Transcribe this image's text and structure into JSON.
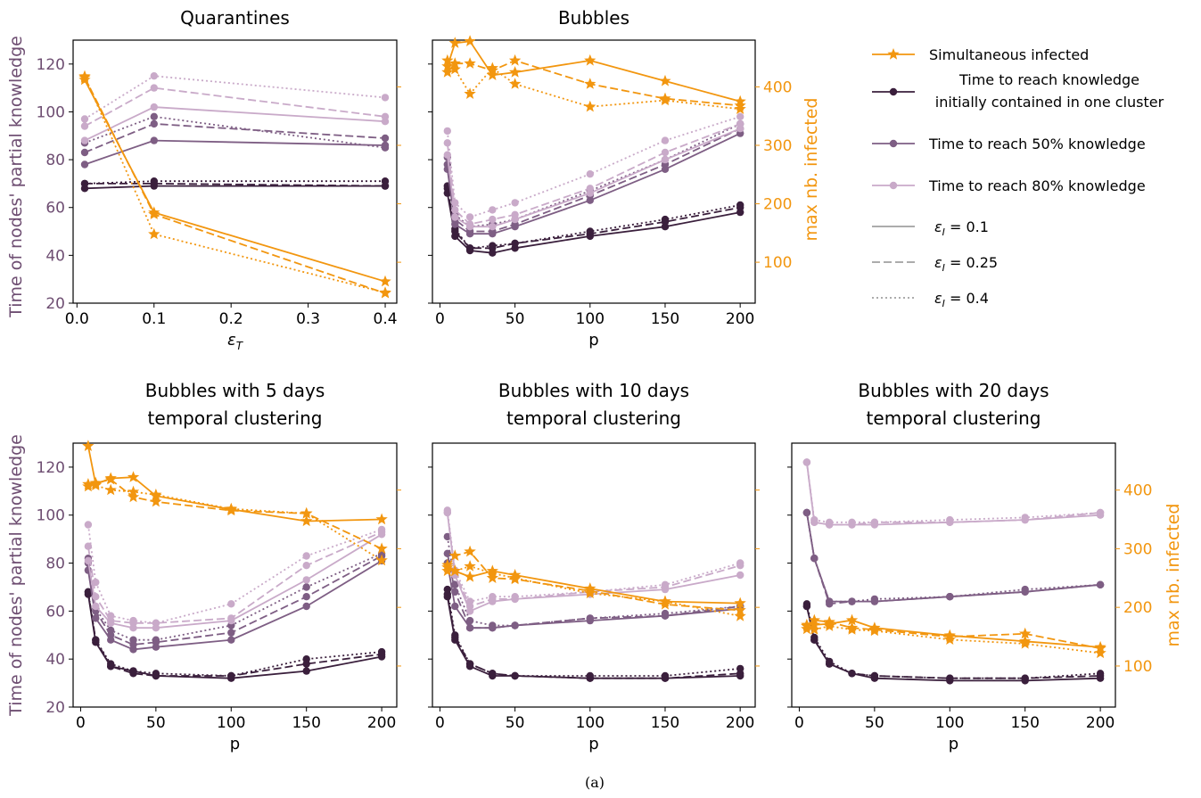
{
  "colors": {
    "infected": "#F2960F",
    "k1": "#3A1F3C",
    "k50": "#7E5E84",
    "k80": "#C9AAC9",
    "left_axis": "#6E4E72",
    "right_axis": "#F2960F"
  },
  "labels": {
    "left_ylabel": "Time of nodes' partial knowledge",
    "right_ylabel": "max nb. infected",
    "caption": "(a)"
  },
  "legend": {
    "items": [
      {
        "label": "Simultaneous infected",
        "marker": "star",
        "style": "solid",
        "series": "infected"
      },
      {
        "label": "Time to reach knowledge initially contained in one cluster",
        "lines": [
          "Time to reach knowledge",
          "initially contained in one cluster"
        ],
        "marker": "dot",
        "style": "solid",
        "series": "k1"
      },
      {
        "label": "Time to reach 50% knowledge",
        "marker": "dot",
        "style": "solid",
        "series": "k50"
      },
      {
        "label": "Time to reach 80% knowledge",
        "marker": "dot",
        "style": "solid",
        "series": "k80"
      },
      {
        "label_prefix": "ε",
        "label_sub": "I",
        "label_suffix": " = 0.1",
        "style": "solid"
      },
      {
        "label_prefix": "ε",
        "label_sub": "I",
        "label_suffix": " = 0.25",
        "style": "dashed"
      },
      {
        "label_prefix": "ε",
        "label_sub": "I",
        "label_suffix": " = 0.4",
        "style": "dotted"
      }
    ]
  },
  "chart_data": [
    {
      "type": "line",
      "title": [
        "Quarantines"
      ],
      "xlabel": "ε",
      "xlabel_sub": "T",
      "x": [
        0.01,
        0.1,
        0.4
      ],
      "xlim": [
        -0.005,
        0.415
      ],
      "xticks": [
        0.0,
        0.1,
        0.2,
        0.3,
        0.4
      ],
      "xtick_labels": [
        "0.0",
        "0.1",
        "0.2",
        "0.3",
        "0.4"
      ],
      "ylim": [
        20,
        130
      ],
      "yticks": [
        20,
        40,
        60,
        80,
        100,
        120
      ],
      "ylim_right": [
        30,
        480
      ],
      "yticks_right": [
        100,
        200,
        300,
        400
      ],
      "show_left_labels": true,
      "show_right_labels": false,
      "series": {
        "k1": {
          "solid": [
            68,
            69,
            69
          ],
          "dashed": [
            70,
            70,
            69
          ],
          "dotted": [
            70,
            71,
            71
          ]
        },
        "k50": {
          "solid": [
            78,
            88,
            86
          ],
          "dashed": [
            83,
            95,
            89
          ],
          "dotted": [
            87,
            98,
            85
          ]
        },
        "k80": {
          "solid": [
            88,
            102,
            96
          ],
          "dashed": [
            94,
            110,
            98
          ],
          "dotted": [
            97,
            115,
            106
          ]
        },
        "infected": {
          "solid": [
            412,
            185,
            67
          ],
          "dashed": [
            416,
            182,
            47
          ],
          "dotted": [
            418,
            148,
            48
          ]
        }
      }
    },
    {
      "type": "line",
      "title": [
        "Bubbles"
      ],
      "xlabel": "p",
      "x": [
        5,
        10,
        20,
        35,
        50,
        100,
        150,
        200
      ],
      "xlim": [
        -5,
        210
      ],
      "xticks": [
        0,
        50,
        100,
        150,
        200
      ],
      "xtick_labels": [
        "0",
        "50",
        "100",
        "150",
        "200"
      ],
      "ylim": [
        20,
        130
      ],
      "yticks": [
        20,
        40,
        60,
        80,
        100,
        120
      ],
      "ylim_right": [
        30,
        480
      ],
      "yticks_right": [
        100,
        200,
        300,
        400
      ],
      "show_left_labels": false,
      "show_right_labels": true,
      "series": {
        "k1": {
          "solid": [
            66,
            48,
            42,
            41,
            43,
            48,
            52,
            58
          ],
          "dashed": [
            68,
            50,
            43,
            43,
            45,
            49,
            54,
            60
          ],
          "dotted": [
            69,
            51,
            43,
            44,
            45,
            50,
            55,
            61
          ]
        },
        "k50": {
          "solid": [
            76,
            53,
            49,
            49,
            52,
            63,
            76,
            91
          ],
          "dashed": [
            78,
            55,
            50,
            50,
            53,
            65,
            78,
            93
          ],
          "dotted": [
            81,
            57,
            52,
            53,
            55,
            67,
            80,
            95
          ]
        },
        "k80": {
          "solid": [
            82,
            56,
            52,
            52,
            55,
            66,
            80,
            93
          ],
          "dashed": [
            87,
            59,
            53,
            55,
            57,
            68,
            83,
            95
          ],
          "dotted": [
            92,
            62,
            56,
            59,
            62,
            74,
            88,
            98
          ]
        },
        "infected": {
          "solid": [
            435,
            475,
            478,
            420,
            425,
            445,
            410,
            375
          ],
          "dashed": [
            425,
            440,
            440,
            428,
            445,
            405,
            380,
            368
          ],
          "dotted": [
            445,
            430,
            388,
            432,
            405,
            366,
            377,
            362
          ]
        }
      }
    },
    {
      "type": "line",
      "title": [
        "Bubbles with 5 days",
        "temporal clustering"
      ],
      "xlabel": "p",
      "x": [
        5,
        10,
        20,
        35,
        50,
        100,
        150,
        200
      ],
      "xlim": [
        -5,
        210
      ],
      "xticks": [
        0,
        50,
        100,
        150,
        200
      ],
      "xtick_labels": [
        "0",
        "50",
        "100",
        "150",
        "200"
      ],
      "ylim": [
        20,
        130
      ],
      "yticks": [
        20,
        40,
        60,
        80,
        100,
        120
      ],
      "ylim_right": [
        30,
        480
      ],
      "yticks_right": [
        100,
        200,
        300,
        400
      ],
      "show_left_labels": true,
      "show_right_labels": false,
      "series": {
        "k1": {
          "solid": [
            67,
            47,
            37,
            35,
            33,
            32,
            35,
            41
          ],
          "dashed": [
            68,
            48,
            37,
            34,
            33,
            33,
            38,
            42
          ],
          "dotted": [
            68,
            48,
            38,
            35,
            34,
            33,
            40,
            43
          ]
        },
        "k50": {
          "solid": [
            77,
            57,
            48,
            44,
            45,
            48,
            62,
            81
          ],
          "dashed": [
            80,
            60,
            50,
            46,
            47,
            51,
            66,
            83
          ],
          "dotted": [
            82,
            61,
            52,
            48,
            48,
            54,
            70,
            84
          ]
        },
        "k80": {
          "solid": [
            81,
            62,
            55,
            53,
            53,
            56,
            73,
            92
          ],
          "dashed": [
            87,
            66,
            56,
            55,
            55,
            57,
            79,
            93
          ],
          "dotted": [
            96,
            72,
            58,
            56,
            55,
            63,
            83,
            94
          ]
        },
        "infected": {
          "solid": [
            475,
            410,
            420,
            422,
            390,
            367,
            347,
            350
          ],
          "dashed": [
            406,
            412,
            418,
            388,
            380,
            365,
            360,
            300
          ],
          "dotted": [
            410,
            408,
            400,
            397,
            392,
            368,
            360,
            280
          ]
        }
      }
    },
    {
      "type": "line",
      "title": [
        "Bubbles with 10 days",
        "temporal clustering"
      ],
      "xlabel": "p",
      "x": [
        5,
        10,
        20,
        35,
        50,
        100,
        150,
        200
      ],
      "xlim": [
        -5,
        210
      ],
      "xticks": [
        0,
        50,
        100,
        150,
        200
      ],
      "xtick_labels": [
        "0",
        "50",
        "100",
        "150",
        "200"
      ],
      "ylim": [
        20,
        130
      ],
      "yticks": [
        20,
        40,
        60,
        80,
        100,
        120
      ],
      "ylim_right": [
        30,
        480
      ],
      "yticks_right": [
        100,
        200,
        300,
        400
      ],
      "show_left_labels": false,
      "show_right_labels": false,
      "series": {
        "k1": {
          "solid": [
            66,
            48,
            37,
            33,
            33,
            32,
            32,
            33
          ],
          "dashed": [
            67,
            49,
            38,
            34,
            33,
            32,
            32,
            34
          ],
          "dotted": [
            69,
            50,
            38,
            34,
            33,
            33,
            33,
            36
          ]
        },
        "k50": {
          "solid": [
            80,
            62,
            53,
            53,
            54,
            56,
            58,
            61
          ],
          "dashed": [
            84,
            68,
            53,
            53,
            54,
            57,
            58,
            62
          ],
          "dotted": [
            91,
            71,
            56,
            54,
            54,
            57,
            59,
            62
          ]
        },
        "k80": {
          "solid": [
            101,
            75,
            60,
            64,
            65,
            67,
            69,
            75
          ],
          "dashed": [
            101,
            76,
            62,
            65,
            65,
            68,
            70,
            79
          ],
          "dotted": [
            102,
            77,
            64,
            66,
            66,
            68,
            71,
            80
          ]
        },
        "infected": {
          "solid": [
            272,
            262,
            252,
            262,
            255,
            232,
            210,
            207
          ],
          "dashed": [
            268,
            288,
            295,
            250,
            248,
            228,
            205,
            195
          ],
          "dotted": [
            262,
            262,
            270,
            258,
            250,
            224,
            210,
            185
          ]
        }
      }
    },
    {
      "type": "line",
      "title": [
        "Bubbles with 20 days",
        "temporal clustering"
      ],
      "xlabel": "p",
      "x": [
        5,
        10,
        20,
        35,
        50,
        100,
        150,
        200
      ],
      "xlim": [
        -5,
        210
      ],
      "xticks": [
        0,
        50,
        100,
        150,
        200
      ],
      "xtick_labels": [
        "0",
        "50",
        "100",
        "150",
        "200"
      ],
      "ylim": [
        20,
        130
      ],
      "yticks": [
        20,
        40,
        60,
        80,
        100,
        120
      ],
      "ylim_right": [
        30,
        480
      ],
      "yticks_right": [
        100,
        200,
        300,
        400
      ],
      "show_left_labels": false,
      "show_right_labels": true,
      "series": {
        "k1": {
          "solid": [
            62,
            48,
            38,
            34,
            32,
            31,
            31,
            32
          ],
          "dashed": [
            62,
            48,
            38,
            34,
            33,
            32,
            32,
            33
          ],
          "dotted": [
            63,
            49,
            39,
            34,
            33,
            32,
            32,
            34
          ]
        },
        "k50": {
          "solid": [
            101,
            82,
            64,
            64,
            64,
            66,
            68,
            71
          ],
          "dashed": [
            101,
            82,
            63,
            64,
            64,
            66,
            68,
            71
          ],
          "dotted": [
            101,
            82,
            64,
            64,
            65,
            66,
            69,
            71
          ]
        },
        "k80": {
          "solid": [
            122,
            97,
            96,
            96,
            96,
            97,
            98,
            100
          ],
          "dashed": [
            122,
            97,
            96,
            96,
            97,
            97,
            98,
            101
          ],
          "dotted": [
            122,
            98,
            97,
            97,
            97,
            98,
            99,
            101
          ]
        },
        "infected": {
          "solid": [
            163,
            170,
            172,
            178,
            165,
            152,
            142,
            132
          ],
          "dashed": [
            170,
            178,
            175,
            165,
            162,
            150,
            155,
            130
          ],
          "dotted": [
            168,
            162,
            168,
            162,
            160,
            145,
            138,
            122
          ]
        }
      }
    }
  ]
}
